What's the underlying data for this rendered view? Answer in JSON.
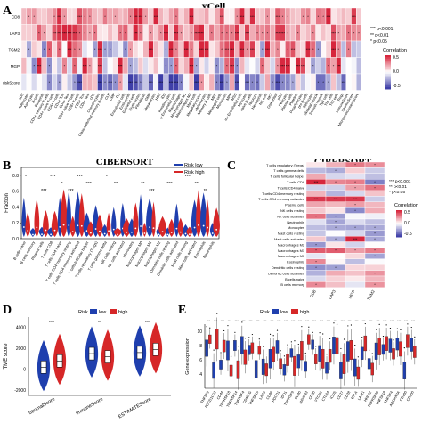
{
  "panels": {
    "A": {
      "label": "A",
      "title": "xCell",
      "rows": [
        "CD8",
        "LAP3",
        "TGM2",
        "MGP",
        "riskScore"
      ],
      "colorbar": {
        "title": "Correlation",
        "ticks": [
          "0.5",
          "0.0",
          "-0.5"
        ]
      },
      "sig_legend": [
        "*** p<0.001",
        "** p<0.01",
        "* p<0.05"
      ],
      "columns": [
        "aDC",
        "Adipocytes",
        "Astrocytes",
        "B-cells",
        "Basophils",
        "CD4+ memory T-cells",
        "CD4+ naive T-cells",
        "CD4+ T-cells",
        "CD4+ Tcm",
        "CD4+ Tem",
        "CD8+ naive T-cells",
        "CD8+ T-cells",
        "CD8+ Tcm",
        "CD8+ Tem",
        "cDC",
        "Chondrocytes",
        "Class-switched memory B-cells",
        "CLP",
        "CMP",
        "DC",
        "Endothelial cells",
        "Eosinophils",
        "Epithelial cells",
        "Erythrocytes",
        "Fibroblasts",
        "GMP",
        "Hepatocytes",
        "HSC",
        "iDC",
        "Keratinocytes",
        "ly Endothelial cells",
        "Macrophages",
        "Macrophages M1",
        "Macrophages M2",
        "Mast cells",
        "Megakaryocytes",
        "Melanocytes",
        "Memory B-cells",
        "MEP",
        "Mesangial cells",
        "Monocytes",
        "MPP",
        "MSC",
        "mv Endothelial cells",
        "Myocytes",
        "naive B-cells",
        "Neurons",
        "Neutrophils",
        "NK cells",
        "NKT",
        "Osteoblast",
        "pDC",
        "Pericytes",
        "Plasma cells",
        "Platelets",
        "Preadipocytes",
        "pro B-cells",
        "Sebocytes",
        "Skeletal muscle",
        "Smooth muscle",
        "Tgd cells",
        "Th1 cells",
        "Th2 cells",
        "Tregs",
        "ImmuneScore",
        "StromaScore",
        "MicroenvironmentScore"
      ]
    },
    "B": {
      "label": "B",
      "title": "CIBERSORT",
      "ylabel": "Fraction",
      "yticks": [
        "0.0",
        "0.2",
        "0.4",
        "0.6",
        "0.8"
      ],
      "legend": [
        "Risk low",
        "Risk high"
      ],
      "categories": [
        "B cells naive",
        "B cells memory",
        "Plasma cells",
        "T cells CD8",
        "T cells CD4 naive",
        "T cells CD4 memory resting",
        "T cells CD4 memory activated",
        "T cells follicular helper",
        "T cells regulatory (Tregs)",
        "T cells gamma delta",
        "NK cells resting",
        "NK cells activated",
        "Monocytes",
        "Macrophages M0",
        "Macrophages M1",
        "Macrophages M2",
        "Dendritic cells resting",
        "Dendritic cells activated",
        "Mast cells resting",
        "Mast cells activated",
        "Eosinophils",
        "Neutrophils"
      ],
      "significance": [
        "*",
        "",
        "***",
        "***",
        "*",
        "***",
        "***",
        "***",
        "",
        "*",
        "**",
        "",
        "",
        "**",
        "***",
        "",
        "***",
        "",
        "***",
        "**",
        "**",
        ""
      ]
    },
    "C": {
      "label": "C",
      "title": "CIBERSORT",
      "rows": [
        "T cells regulatory (Tregs)",
        "T cells gamma delta",
        "T cells follicular helper",
        "T cells CD8",
        "T cells CD4 naive",
        "T cells CD4 memory resting",
        "T cells CD4 memory activated",
        "Plasma cells",
        "NK cells resting",
        "NK cells activated",
        "Neutrophils",
        "Monocytes",
        "Mast cells resting",
        "Mast cells activated",
        "Macrophages M2",
        "Macrophages M1",
        "Macrophages M0",
        "Eosinophils",
        "Dendritic cells resting",
        "Dendritic cells activated",
        "B cells naive",
        "B cells memory"
      ],
      "columns": [
        "CD8",
        "LAP3",
        "MGP",
        "TGM2"
      ],
      "sig_legend": [
        "*** p<0.001",
        "** p<0.01",
        "* p<0.05"
      ],
      "colorbar": {
        "title": "Correlation",
        "ticks": [
          "0.5",
          "0.0",
          "-0.5"
        ]
      }
    },
    "D": {
      "label": "D",
      "legend_title": "Risk",
      "legend": [
        "low",
        "high"
      ],
      "ylabel": "TME score",
      "yticks": [
        "4000",
        "2000",
        "0",
        "-2000"
      ],
      "categories": [
        "StromalScore",
        "ImmuneScore",
        "ESTIMATEScore"
      ],
      "significance": [
        "***",
        "**",
        "***"
      ]
    },
    "E": {
      "label": "E",
      "legend_title": "Risk",
      "legend": [
        "low",
        "high"
      ],
      "ylabel": "Gene expression",
      "yticks": [
        "10",
        "8",
        "6",
        "4"
      ],
      "genes": [
        "TNFSF9",
        "PDCD1LG2",
        "CD44",
        "TNFRSF18",
        "TNFRSF14",
        "TNFRSF4",
        "CD40LG",
        "TNFSF15",
        "LAG3",
        "CD86",
        "PDCD1",
        "IDO1",
        "TNFRSF9",
        "CD40",
        "HAVCR2",
        "CD80",
        "VTCN1",
        "CTLA4",
        "ICOS",
        "CD27",
        "CD28",
        "BTLA",
        "LAIR1",
        "HHLA2",
        "TNFRSF25",
        "TNFSF18",
        "TNFSF4",
        "ADORA2A",
        "CD160",
        "CD200"
      ],
      "significance": "***"
    }
  },
  "colors": {
    "low": "#1f3fae",
    "high": "#d62728",
    "heat_pos": "#d7263d",
    "heat_neg": "#3f3fa8",
    "neutral": "#ffffff"
  },
  "chart_data": [
    {
      "panel": "A",
      "type": "heatmap",
      "title": "xCell",
      "rows": [
        "CD8",
        "LAP3",
        "TGM2",
        "MGP",
        "riskScore"
      ],
      "value_range": [
        -0.5,
        0.5
      ]
    },
    {
      "panel": "B",
      "type": "violin",
      "title": "CIBERSORT",
      "ylabel": "Fraction",
      "ylim": [
        0,
        0.9
      ],
      "series": [
        {
          "name": "Risk low"
        },
        {
          "name": "Risk high"
        }
      ]
    },
    {
      "panel": "C",
      "type": "heatmap",
      "title": "CIBERSORT",
      "value_range": [
        -0.5,
        0.5
      ]
    },
    {
      "panel": "D",
      "type": "violin",
      "ylabel": "TME score",
      "ylim": [
        -2500,
        5000
      ],
      "categories": [
        "StromalScore",
        "ImmuneScore",
        "ESTIMATEScore"
      ],
      "series": [
        {
          "name": "low",
          "medians": [
            200,
            1500,
            1600
          ]
        },
        {
          "name": "high",
          "medians": [
            800,
            1200,
            1900
          ]
        }
      ]
    },
    {
      "panel": "E",
      "type": "box",
      "ylabel": "Gene expression",
      "ylim": [
        2,
        11
      ],
      "series": [
        {
          "name": "low"
        },
        {
          "name": "high"
        }
      ]
    }
  ]
}
